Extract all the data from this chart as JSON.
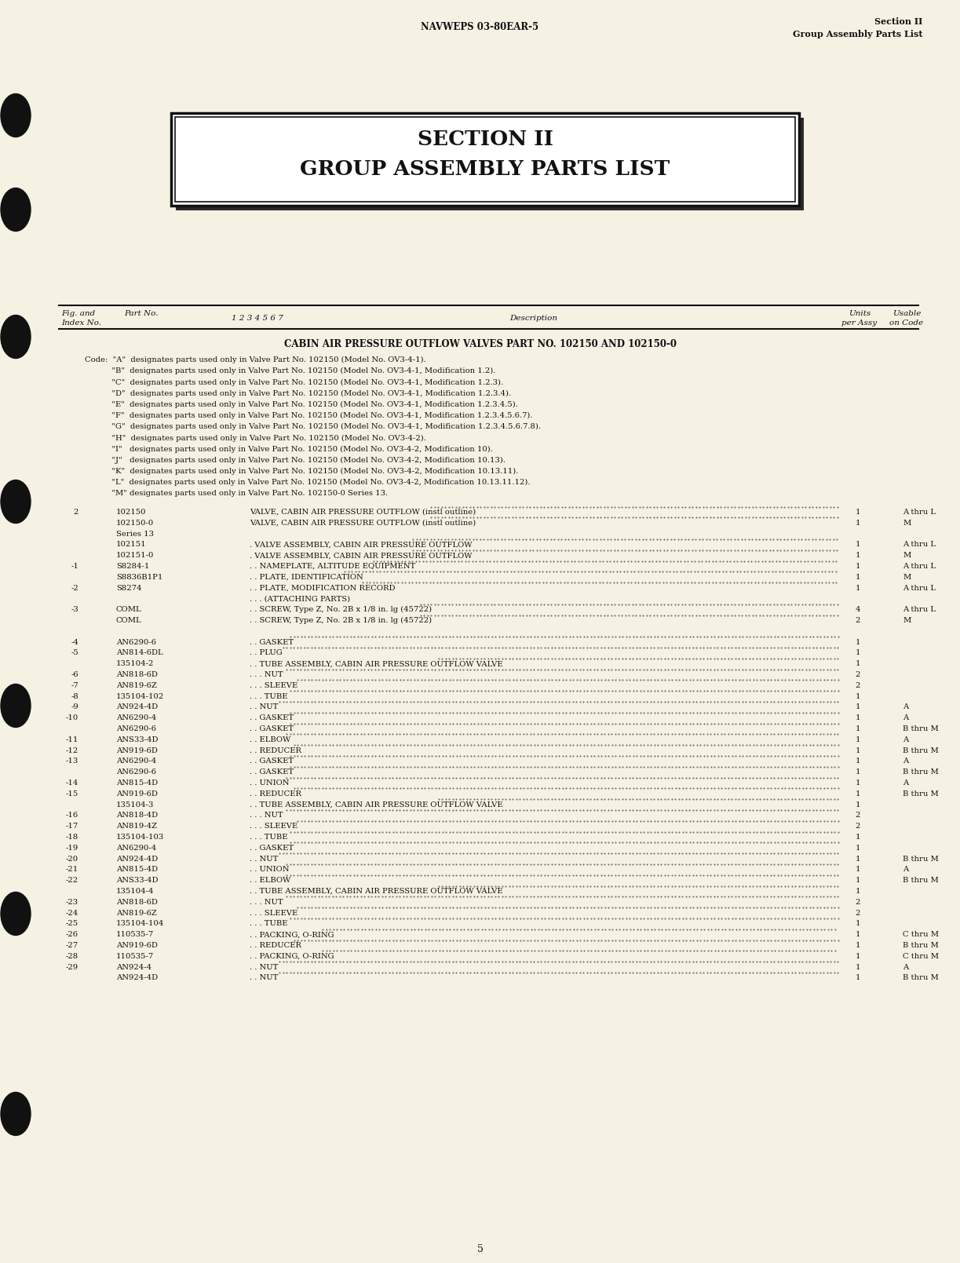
{
  "bg_color": "#f5f2e3",
  "page_number": "5",
  "header_left": "NAVWEPS 03-80EAR-5",
  "header_right_line1": "Section II",
  "header_right_line2": "Group Assembly Parts List",
  "section_title_line1": "SECTION II",
  "section_title_line2": "GROUP ASSEMBLY PARTS LIST",
  "cabin_title": "CABIN AIR PRESSURE OUTFLOW VALVES PART NO. 102150 AND 102150-0",
  "code_lines": [
    [
      "Code:  \"A\"  designates parts used only in Valve Part No. 102150 (Model No. OV3-4-1).",
      false
    ],
    [
      "           \"B\"  designates parts used only in Valve Part No. 102150 (Model No. OV3-4-1, Modification 1.2).",
      false
    ],
    [
      "           \"C\"  designates parts used only in Valve Part No. 102150 (Model No. OV3-4-1, Modification 1.2.3).",
      false
    ],
    [
      "           \"D\"  designates parts used only in Valve Part No. 102150 (Model No. OV3-4-1, Modification 1.2.3.4).",
      false
    ],
    [
      "           \"E\"  designates parts used only in Valve Part No. 102150 (Model No. OV3-4-1, Modification 1.2.3.4.5).",
      false
    ],
    [
      "           \"F\"  designates parts used only in Valve Part No. 102150 (Model No. OV3-4-1, Modification 1.2.3.4.5.6.7).",
      false
    ],
    [
      "           \"G\"  designates parts used only in Valve Part No. 102150 (Model No. OV3-4-1, Modification 1.2.3.4.5.6.7.8).",
      false
    ],
    [
      "           \"H\"  designates parts used only in Valve Part No. 102150 (Model No. OV3-4-2).",
      false
    ],
    [
      "           \"I\"   designates parts used only in Valve Part No. 102150 (Model No. OV3-4-2, Modification 10).",
      false
    ],
    [
      "           \"J\"   designates parts used only in Valve Part No. 102150 (Model No. OV3-4-2, Modification 10.13).",
      false
    ],
    [
      "           \"K\"  designates parts used only in Valve Part No. 102150 (Model No. OV3-4-2, Modification 10.13.11).",
      false
    ],
    [
      "           \"L\"  designates parts used only in Valve Part No. 102150 (Model No. OV3-4-2, Modification 10.13.11.12).",
      false
    ],
    [
      "           \"M\" designates parts used only in Valve Part No. 102150-0 Series 13.",
      false
    ]
  ],
  "parts_rows": [
    {
      "fig": "2",
      "part": "102150",
      "dots_indent": 0,
      "desc_indent": 0,
      "desc": "VALVE, CABIN AIR PRESSURE OUTFLOW (instl outline)",
      "dots": true,
      "units": "1",
      "usable": "A thru L"
    },
    {
      "fig": "",
      "part": "102150-0",
      "dots_indent": 0,
      "desc_indent": 0,
      "desc": "VALVE, CABIN AIR PRESSURE OUTFLOW (instl outline)",
      "dots": true,
      "units": "1",
      "usable": "M"
    },
    {
      "fig": "",
      "part": "Series 13",
      "dots_indent": 0,
      "desc_indent": 0,
      "desc": "",
      "dots": false,
      "units": "",
      "usable": ""
    },
    {
      "fig": "",
      "part": "102151",
      "dots_indent": 1,
      "desc_indent": 1,
      "desc": "VALVE ASSEMBLY, CABIN AIR PRESSURE OUTFLOW",
      "dots": true,
      "units": "1",
      "usable": "A thru L"
    },
    {
      "fig": "",
      "part": "102151-0",
      "dots_indent": 1,
      "desc_indent": 1,
      "desc": "VALVE ASSEMBLY, CABIN AIR PRESSURE OUTFLOW",
      "dots": true,
      "units": "1",
      "usable": "M"
    },
    {
      "fig": "-1",
      "part": "S8284-1",
      "dots_indent": 2,
      "desc_indent": 2,
      "desc": "NAMEPLATE, ALTITUDE EQUIPMENT",
      "dots": true,
      "units": "1",
      "usable": "A thru L"
    },
    {
      "fig": "",
      "part": "S8836B1P1",
      "dots_indent": 2,
      "desc_indent": 2,
      "desc": "PLATE, IDENTIFICATION",
      "dots": true,
      "units": "1",
      "usable": "M"
    },
    {
      "fig": "-2",
      "part": "S8274",
      "dots_indent": 2,
      "desc_indent": 2,
      "desc": "PLATE, MODIFICATION RECORD",
      "dots": true,
      "units": "1",
      "usable": "A thru L"
    },
    {
      "fig": "",
      "part": "",
      "dots_indent": 3,
      "desc_indent": 3,
      "desc": "(ATTACHING PARTS)",
      "dots": false,
      "units": "",
      "usable": ""
    },
    {
      "fig": "-3",
      "part": "COML",
      "dots_indent": 2,
      "desc_indent": 2,
      "desc": "SCREW, Type Z, No. 2B x 1/8 in. lg (45722)",
      "dots": true,
      "units": "4",
      "usable": "A thru L"
    },
    {
      "fig": "",
      "part": "COML",
      "dots_indent": 2,
      "desc_indent": 2,
      "desc": "SCREW, Type Z, No. 2B x 1/8 in. lg (45722)",
      "dots": true,
      "units": "2",
      "usable": "M"
    },
    {
      "fig": "",
      "part": "",
      "dots_indent": 0,
      "desc_indent": 0,
      "desc": "",
      "dots": false,
      "units": "",
      "usable": ""
    },
    {
      "fig": "-4",
      "part": "AN6290-6",
      "dots_indent": 2,
      "desc_indent": 2,
      "desc": "GASKET",
      "dots": true,
      "units": "1",
      "usable": ""
    },
    {
      "fig": "-5",
      "part": "AN814-6DL",
      "dots_indent": 2,
      "desc_indent": 2,
      "desc": "PLUG",
      "dots": true,
      "units": "1",
      "usable": ""
    },
    {
      "fig": "",
      "part": "135104-2",
      "dots_indent": 2,
      "desc_indent": 2,
      "desc": "TUBE ASSEMBLY, CABIN AIR PRESSURE OUTFLOW VALVE",
      "dots": true,
      "units": "1",
      "usable": ""
    },
    {
      "fig": "-6",
      "part": "AN818-6D",
      "dots_indent": 3,
      "desc_indent": 3,
      "desc": "NUT",
      "dots": true,
      "units": "2",
      "usable": ""
    },
    {
      "fig": "-7",
      "part": "AN819-6Z",
      "dots_indent": 3,
      "desc_indent": 3,
      "desc": "SLEEVE",
      "dots": true,
      "units": "2",
      "usable": ""
    },
    {
      "fig": "-8",
      "part": "135104-102",
      "dots_indent": 3,
      "desc_indent": 3,
      "desc": "TUBE",
      "dots": true,
      "units": "1",
      "usable": ""
    },
    {
      "fig": "-9",
      "part": "AN924-4D",
      "dots_indent": 2,
      "desc_indent": 2,
      "desc": "NUT",
      "dots": true,
      "units": "1",
      "usable": "A"
    },
    {
      "fig": "-10",
      "part": "AN6290-4",
      "dots_indent": 2,
      "desc_indent": 2,
      "desc": "GASKET",
      "dots": true,
      "units": "1",
      "usable": "A"
    },
    {
      "fig": "",
      "part": "AN6290-6",
      "dots_indent": 2,
      "desc_indent": 2,
      "desc": "GASKET",
      "dots": true,
      "units": "1",
      "usable": "B thru M"
    },
    {
      "fig": "-11",
      "part": "ANS33-4D",
      "dots_indent": 2,
      "desc_indent": 2,
      "desc": "ELBOW",
      "dots": true,
      "units": "1",
      "usable": "A"
    },
    {
      "fig": "-12",
      "part": "AN919-6D",
      "dots_indent": 2,
      "desc_indent": 2,
      "desc": "REDUCER",
      "dots": true,
      "units": "1",
      "usable": "B thru M"
    },
    {
      "fig": "-13",
      "part": "AN6290-4",
      "dots_indent": 2,
      "desc_indent": 2,
      "desc": "GASKET",
      "dots": true,
      "units": "1",
      "usable": "A"
    },
    {
      "fig": "",
      "part": "AN6290-6",
      "dots_indent": 2,
      "desc_indent": 2,
      "desc": "GASKET",
      "dots": true,
      "units": "1",
      "usable": "B thru M"
    },
    {
      "fig": "-14",
      "part": "AN815-4D",
      "dots_indent": 2,
      "desc_indent": 2,
      "desc": "UNION",
      "dots": true,
      "units": "1",
      "usable": "A"
    },
    {
      "fig": "-15",
      "part": "AN919-6D",
      "dots_indent": 2,
      "desc_indent": 2,
      "desc": "REDUCER",
      "dots": true,
      "units": "1",
      "usable": "B thru M"
    },
    {
      "fig": "",
      "part": "135104-3",
      "dots_indent": 2,
      "desc_indent": 2,
      "desc": "TUBE ASSEMBLY, CABIN AIR PRESSURE OUTFLOW VALVE",
      "dots": true,
      "units": "1",
      "usable": ""
    },
    {
      "fig": "-16",
      "part": "AN818-4D",
      "dots_indent": 3,
      "desc_indent": 3,
      "desc": "NUT",
      "dots": true,
      "units": "2",
      "usable": ""
    },
    {
      "fig": "-17",
      "part": "AN819-4Z",
      "dots_indent": 3,
      "desc_indent": 3,
      "desc": "SLEEVE",
      "dots": true,
      "units": "2",
      "usable": ""
    },
    {
      "fig": "-18",
      "part": "135104-103",
      "dots_indent": 3,
      "desc_indent": 3,
      "desc": "TUBE",
      "dots": true,
      "units": "1",
      "usable": ""
    },
    {
      "fig": "-19",
      "part": "AN6290-4",
      "dots_indent": 2,
      "desc_indent": 2,
      "desc": "GASKET",
      "dots": true,
      "units": "1",
      "usable": ""
    },
    {
      "fig": "-20",
      "part": "AN924-4D",
      "dots_indent": 2,
      "desc_indent": 2,
      "desc": "NUT",
      "dots": true,
      "units": "1",
      "usable": "B thru M"
    },
    {
      "fig": "-21",
      "part": "AN815-4D",
      "dots_indent": 2,
      "desc_indent": 2,
      "desc": "UNION",
      "dots": true,
      "units": "1",
      "usable": "A"
    },
    {
      "fig": "-22",
      "part": "ANS33-4D",
      "dots_indent": 2,
      "desc_indent": 2,
      "desc": "ELBOW",
      "dots": true,
      "units": "1",
      "usable": "B thru M"
    },
    {
      "fig": "",
      "part": "135104-4",
      "dots_indent": 2,
      "desc_indent": 2,
      "desc": "TUBE ASSEMBLY, CABIN AIR PRESSURE OUTFLOW VALVE",
      "dots": true,
      "units": "1",
      "usable": ""
    },
    {
      "fig": "-23",
      "part": "AN818-6D",
      "dots_indent": 3,
      "desc_indent": 3,
      "desc": "NUT",
      "dots": true,
      "units": "2",
      "usable": ""
    },
    {
      "fig": "-24",
      "part": "AN819-6Z",
      "dots_indent": 3,
      "desc_indent": 3,
      "desc": "SLEEVE",
      "dots": true,
      "units": "2",
      "usable": ""
    },
    {
      "fig": "-25",
      "part": "135104-104",
      "dots_indent": 3,
      "desc_indent": 3,
      "desc": "TUBE",
      "dots": true,
      "units": "1",
      "usable": ""
    },
    {
      "fig": "-26",
      "part": "110535-7",
      "dots_indent": 2,
      "desc_indent": 2,
      "desc": "PACKING, O-RING",
      "dots": true,
      "units": "1",
      "usable": "C thru M"
    },
    {
      "fig": "-27",
      "part": "AN919-6D",
      "dots_indent": 2,
      "desc_indent": 2,
      "desc": "REDUCER",
      "dots": true,
      "units": "1",
      "usable": "B thru M"
    },
    {
      "fig": "-28",
      "part": "110535-7",
      "dots_indent": 2,
      "desc_indent": 2,
      "desc": "PACKING, O-RING",
      "dots": true,
      "units": "1",
      "usable": "C thru M"
    },
    {
      "fig": "-29",
      "part": "AN924-4",
      "dots_indent": 2,
      "desc_indent": 2,
      "desc": "NUT",
      "dots": true,
      "units": "1",
      "usable": "A"
    },
    {
      "fig": "",
      "part": "AN924-4D",
      "dots_indent": 2,
      "desc_indent": 2,
      "desc": "NUT",
      "dots": true,
      "units": "1",
      "usable": "B thru M"
    }
  ]
}
